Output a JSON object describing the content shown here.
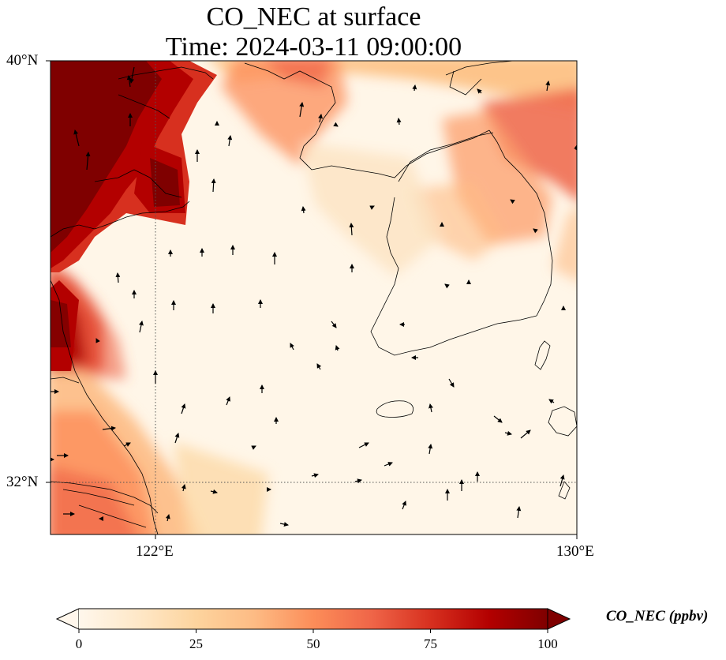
{
  "title": {
    "line1": "CO_NEC at surface",
    "line2": "Time: 2024-03-11 09:00:00"
  },
  "axes": {
    "lat_labels": [
      "40°N",
      "32°N"
    ],
    "lon_labels": [
      "122°E",
      "130°E"
    ],
    "lat_range": [
      31,
      40
    ],
    "lon_range": [
      120,
      130
    ],
    "gridlines": {
      "lat": 32,
      "lon": 122,
      "style": "dotted"
    }
  },
  "colorbar": {
    "label": "CO_NEC (ppbv)",
    "ticks": [
      "0",
      "25",
      "50",
      "75",
      "100"
    ],
    "range": [
      0,
      100
    ],
    "extend": "both",
    "colormap": "OrRd",
    "colors": [
      "#fff7ec",
      "#fee8c8",
      "#fdd49e",
      "#fdbb84",
      "#fc8d59",
      "#ef6548",
      "#d7301f",
      "#b30000",
      "#7f0000"
    ]
  },
  "layers": {
    "field": "CO_NEC concentration at surface",
    "vectors": "wind arrows",
    "coastlines": true
  }
}
